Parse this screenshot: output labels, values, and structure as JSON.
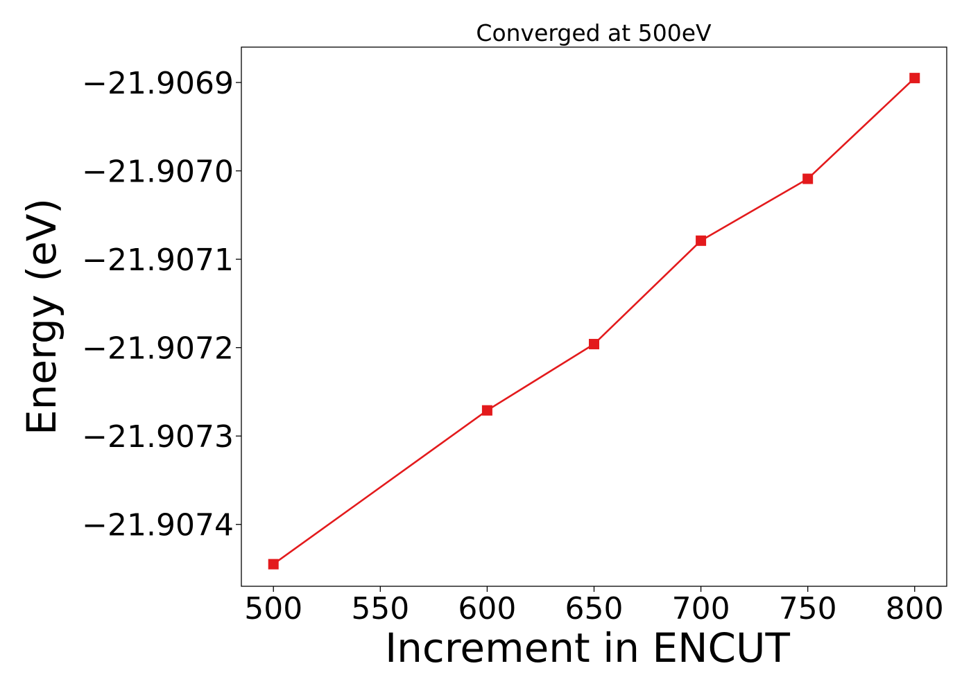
{
  "chart_data": {
    "type": "line",
    "title": "Converged at 500eV",
    "xlabel": "Increment in ENCUT",
    "ylabel": "Energy (eV)",
    "xlim": [
      485,
      815
    ],
    "ylim": [
      -21.90747,
      -21.90686
    ],
    "xticks": [
      500,
      550,
      600,
      650,
      700,
      750,
      800
    ],
    "xtick_labels": [
      "500",
      "550",
      "600",
      "650",
      "700",
      "750",
      "800"
    ],
    "yticks": [
      -21.9069,
      -21.907,
      -21.9071,
      -21.9072,
      -21.9073,
      -21.9074
    ],
    "ytick_labels": [
      "−21.9069",
      "−21.9070",
      "−21.9071",
      "−21.9072",
      "−21.9073",
      "−21.9074"
    ],
    "grid": false,
    "series": [
      {
        "color": "#e31a1c",
        "marker": "square",
        "x": [
          500,
          600,
          650,
          700,
          750,
          800
        ],
        "y": [
          -21.907445,
          -21.907271,
          -21.907196,
          -21.907079,
          -21.907009,
          -21.906895
        ]
      }
    ]
  }
}
